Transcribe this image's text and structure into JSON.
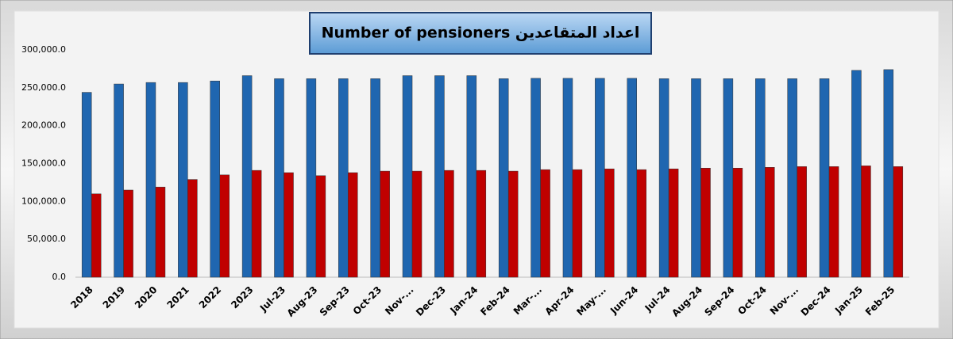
{
  "chart_data": {
    "type": "bar",
    "title": "Number of pensioners  اعداد المتقاعدين",
    "categories": [
      "2018",
      "2019",
      "2020",
      "2021",
      "2022",
      "2023",
      "Jul-23",
      "Aug-23",
      "Sep-23",
      "Oct-23",
      "Nov-...",
      "Dec-23",
      "Jan-24",
      "Feb-24",
      "Mar-...",
      "Apr-24",
      "May-...",
      "Jun-24",
      "Jul-24",
      "Aug-24",
      "Sep-24",
      "Oct-24",
      "Nov-...",
      "Dec-24",
      "Jan-25",
      "Feb-25"
    ],
    "series": [
      {
        "color": "#1f66b0",
        "values": [
          244000,
          255000,
          257000,
          257000,
          259000,
          266000,
          262000,
          262000,
          262000,
          262000,
          266000,
          266000,
          266000,
          262000,
          262500,
          262500,
          262500,
          262500,
          262000,
          262000,
          262000,
          262000,
          262000,
          262000,
          273000,
          274000
        ]
      },
      {
        "color": "#c00000",
        "values": [
          110000,
          115000,
          119000,
          129000,
          135000,
          141000,
          138000,
          134000,
          138000,
          140000,
          140000,
          141000,
          141000,
          140000,
          142000,
          142000,
          143000,
          142000,
          143000,
          144000,
          144000,
          145000,
          146000,
          146000,
          147000,
          146000
        ]
      }
    ],
    "ylim": [
      0,
      300000
    ],
    "yticks": [
      {
        "value": 0,
        "label": "0.0"
      },
      {
        "value": 50000,
        "label": "50,000.0"
      },
      {
        "value": 100000,
        "label": "100,000.0"
      },
      {
        "value": 150000,
        "label": "150,000.0"
      },
      {
        "value": 200000,
        "label": "200,000.0"
      },
      {
        "value": 250000,
        "label": "250,000.0"
      },
      {
        "value": 300000,
        "label": "300,000.0"
      }
    ],
    "grid": false
  }
}
